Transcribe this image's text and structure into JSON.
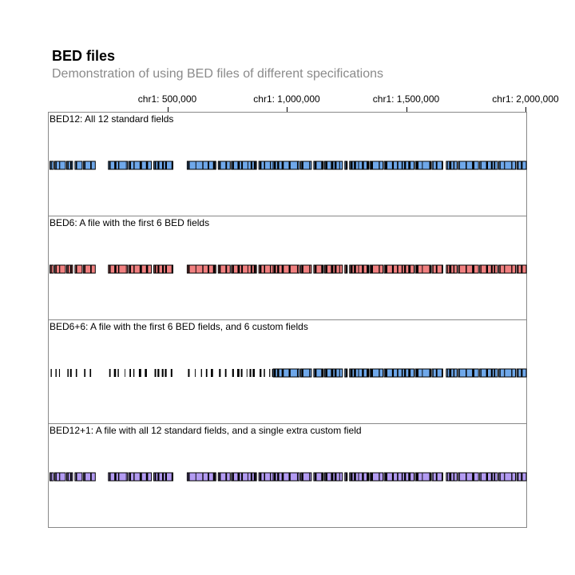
{
  "header": {
    "title": "BED files",
    "subtitle": "Demonstration of using BED files of different specifications"
  },
  "axis": {
    "domain": [
      0,
      2000000
    ],
    "ticks": [
      {
        "value": 500000,
        "label": "chr1: 500,000"
      },
      {
        "value": 1000000,
        "label": "chr1: 1,000,000"
      },
      {
        "value": 1500000,
        "label": "chr1: 1,500,000"
      },
      {
        "value": 2000000,
        "label": "chr1: 2,000,000"
      }
    ]
  },
  "tracks": [
    {
      "id": "bed12",
      "label": "BED12: All 12 standard fields",
      "color": "#6fa8ea",
      "style": "gene"
    },
    {
      "id": "bed6",
      "label": "BED6: A file with the first 6 BED fields",
      "color": "#f08080",
      "style": "gene"
    },
    {
      "id": "bed6plus6",
      "label": "BED6+6: A file with the first 6 BED fields, and 6 custom fields",
      "color": "#6fa8ea",
      "style": "mixed"
    },
    {
      "id": "bed12plus1",
      "label": "BED12+1: A file with all 12 standard fields, and a single extra custom field",
      "color": "#b39bf2",
      "style": "gene"
    }
  ],
  "features": [
    [
      5000,
      20000
    ],
    [
      25000,
      70000
    ],
    [
      75000,
      100000
    ],
    [
      110000,
      140000
    ],
    [
      145000,
      195000
    ],
    [
      250000,
      330000
    ],
    [
      335000,
      430000
    ],
    [
      440000,
      520000
    ],
    [
      580000,
      700000
    ],
    [
      710000,
      760000
    ],
    [
      765000,
      870000
    ],
    [
      880000,
      940000
    ],
    [
      940000,
      1050000
    ],
    [
      1055000,
      1100000
    ],
    [
      1110000,
      1150000
    ],
    [
      1155000,
      1230000
    ],
    [
      1240000,
      1250000
    ],
    [
      1260000,
      1340000
    ],
    [
      1345000,
      1400000
    ],
    [
      1405000,
      1530000
    ],
    [
      1535000,
      1600000
    ],
    [
      1605000,
      1650000
    ],
    [
      1665000,
      1710000
    ],
    [
      1715000,
      1800000
    ],
    [
      1805000,
      1880000
    ],
    [
      1885000,
      1955000
    ],
    [
      1960000,
      2000000
    ]
  ]
}
